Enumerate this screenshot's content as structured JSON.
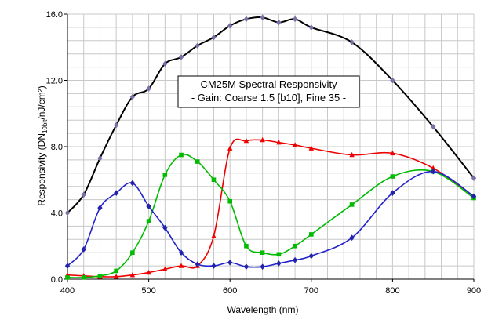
{
  "chart_data": {
    "type": "line",
    "title": "CM25M Spectral Responsivity",
    "subtitle": "- Gain: Coarse 1.5 [b10], Fine 35 -",
    "xlabel": "Wavelength (nm)",
    "ylabel_parts": {
      "pre": "Responsivity (DN",
      "sub": "10bit",
      "post": "/nJ/cm²)"
    },
    "xlim": [
      400,
      900
    ],
    "ylim": [
      0,
      16
    ],
    "x_ticks": [
      "400",
      "500",
      "600",
      "700",
      "800",
      "900"
    ],
    "y_ticks": [
      "0.0",
      "4.0",
      "8.0",
      "12.0",
      "16.0"
    ],
    "grid": true,
    "series": [
      {
        "color": "#000000",
        "marker": "diamond",
        "marker_color": "#7b6fa8",
        "points": [
          [
            400,
            4.0
          ],
          [
            420,
            5.1
          ],
          [
            440,
            7.3
          ],
          [
            460,
            9.3
          ],
          [
            480,
            11.0
          ],
          [
            500,
            11.5
          ],
          [
            520,
            13.0
          ],
          [
            540,
            13.4
          ],
          [
            560,
            14.1
          ],
          [
            580,
            14.6
          ],
          [
            600,
            15.3
          ],
          [
            620,
            15.7
          ],
          [
            640,
            15.8
          ],
          [
            660,
            15.5
          ],
          [
            680,
            15.7
          ],
          [
            700,
            15.2
          ],
          [
            750,
            14.3
          ],
          [
            800,
            12.0
          ],
          [
            850,
            9.2
          ],
          [
            900,
            6.1
          ]
        ]
      },
      {
        "color": "#ee0000",
        "marker": "triangle",
        "marker_color": "#ee0000",
        "points": [
          [
            400,
            0.25
          ],
          [
            420,
            0.2
          ],
          [
            440,
            0.15
          ],
          [
            460,
            0.15
          ],
          [
            480,
            0.25
          ],
          [
            500,
            0.4
          ],
          [
            520,
            0.6
          ],
          [
            540,
            0.8
          ],
          [
            560,
            0.8
          ],
          [
            580,
            2.6
          ],
          [
            600,
            7.9
          ],
          [
            620,
            8.35
          ],
          [
            640,
            8.4
          ],
          [
            660,
            8.25
          ],
          [
            680,
            8.1
          ],
          [
            700,
            7.9
          ],
          [
            750,
            7.5
          ],
          [
            800,
            7.6
          ],
          [
            850,
            6.7
          ],
          [
            900,
            5.0
          ]
        ]
      },
      {
        "color": "#00bb00",
        "marker": "square",
        "marker_color": "#00bb00",
        "points": [
          [
            400,
            0.1
          ],
          [
            420,
            0.1
          ],
          [
            440,
            0.2
          ],
          [
            460,
            0.5
          ],
          [
            480,
            1.6
          ],
          [
            500,
            3.5
          ],
          [
            520,
            6.3
          ],
          [
            540,
            7.5
          ],
          [
            560,
            7.1
          ],
          [
            580,
            6.0
          ],
          [
            600,
            4.7
          ],
          [
            620,
            2.0
          ],
          [
            640,
            1.6
          ],
          [
            660,
            1.5
          ],
          [
            680,
            2.0
          ],
          [
            700,
            2.7
          ],
          [
            750,
            4.5
          ],
          [
            800,
            6.2
          ],
          [
            850,
            6.5
          ],
          [
            900,
            4.9
          ]
        ]
      },
      {
        "color": "#2222cc",
        "marker": "diamond",
        "marker_color": "#2222aa",
        "points": [
          [
            400,
            0.8
          ],
          [
            420,
            1.8
          ],
          [
            440,
            4.3
          ],
          [
            460,
            5.2
          ],
          [
            480,
            5.8
          ],
          [
            500,
            4.4
          ],
          [
            520,
            3.1
          ],
          [
            540,
            1.6
          ],
          [
            560,
            0.9
          ],
          [
            580,
            0.8
          ],
          [
            600,
            1.0
          ],
          [
            620,
            0.75
          ],
          [
            640,
            0.75
          ],
          [
            660,
            0.95
          ],
          [
            680,
            1.15
          ],
          [
            700,
            1.4
          ],
          [
            750,
            2.5
          ],
          [
            800,
            5.2
          ],
          [
            850,
            6.5
          ],
          [
            900,
            5.0
          ]
        ]
      }
    ]
  }
}
